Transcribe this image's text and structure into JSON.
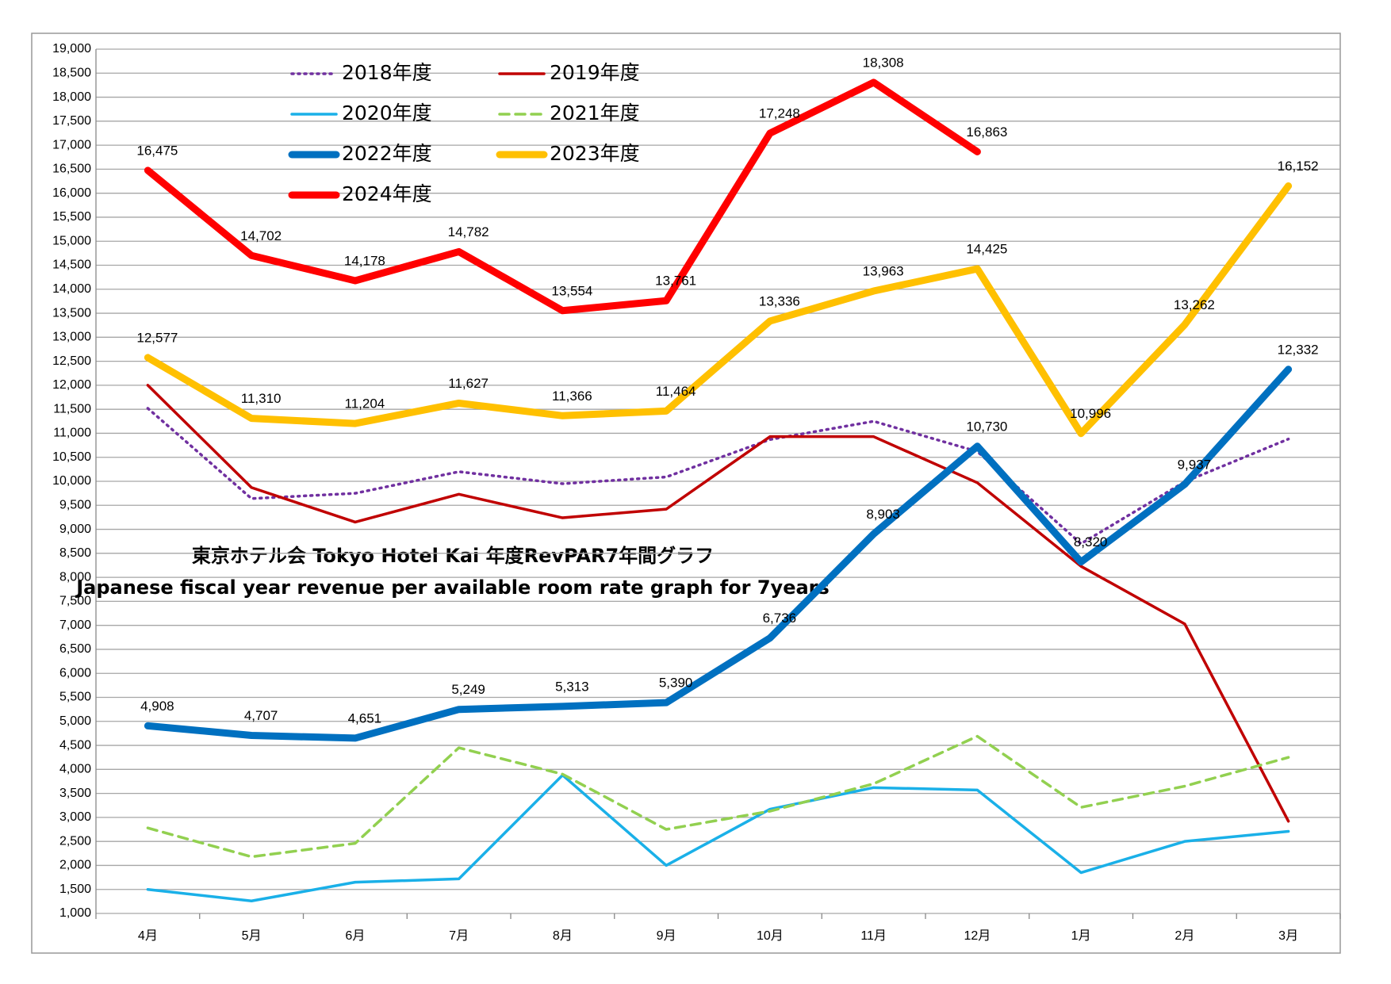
{
  "chart_data": {
    "type": "line",
    "title": "東京ホテル会 Tokyo Hotel Kai  年度RevPAR7年間グラフ",
    "subtitle": "Japanese fiscal year revenue per available room rate graph for 7years",
    "categories": [
      "4月",
      "5月",
      "6月",
      "7月",
      "8月",
      "9月",
      "10月",
      "11月",
      "12月",
      "1月",
      "2月",
      "3月"
    ],
    "ylim": [
      1000,
      19000
    ],
    "yticks": [
      {
        "value": 1000,
        "label": "1,000"
      },
      {
        "value": 1500,
        "label": "1,500"
      },
      {
        "value": 2000,
        "label": "2,000"
      },
      {
        "value": 2500,
        "label": "2,500"
      },
      {
        "value": 3000,
        "label": "3,000"
      },
      {
        "value": 3500,
        "label": "3,500"
      },
      {
        "value": 4000,
        "label": "4,000"
      },
      {
        "value": 4500,
        "label": "4,500"
      },
      {
        "value": 5000,
        "label": "5,000"
      },
      {
        "value": 5500,
        "label": "5,500"
      },
      {
        "value": 6000,
        "label": "6,000"
      },
      {
        "value": 6500,
        "label": "6,500"
      },
      {
        "value": 7000,
        "label": "7,000"
      },
      {
        "value": 7500,
        "label": "7,500"
      },
      {
        "value": 8000,
        "label": "8,000"
      },
      {
        "value": 8500,
        "label": "8,500"
      },
      {
        "value": 9000,
        "label": "9,000"
      },
      {
        "value": 9500,
        "label": "9,500"
      },
      {
        "value": 10000,
        "label": "10,000"
      },
      {
        "value": 10500,
        "label": "10,500"
      },
      {
        "value": 11000,
        "label": "11,000"
      },
      {
        "value": 11500,
        "label": "11,500"
      },
      {
        "value": 12000,
        "label": "12,000"
      },
      {
        "value": 12500,
        "label": "12,500"
      },
      {
        "value": 13000,
        "label": "13,000"
      },
      {
        "value": 13500,
        "label": "13,500"
      },
      {
        "value": 14000,
        "label": "14,000"
      },
      {
        "value": 14500,
        "label": "14,500"
      },
      {
        "value": 15000,
        "label": "15,000"
      },
      {
        "value": 15500,
        "label": "15,500"
      },
      {
        "value": 16000,
        "label": "16,000"
      },
      {
        "value": 16500,
        "label": "16,500"
      },
      {
        "value": 17000,
        "label": "17,000"
      },
      {
        "value": 17500,
        "label": "17,500"
      },
      {
        "value": 18000,
        "label": "18,000"
      },
      {
        "value": 18500,
        "label": "18,500"
      },
      {
        "value": 19000,
        "label": "19,000"
      }
    ],
    "grid": true,
    "series": [
      {
        "name": "2018年度",
        "color": "#7030a0",
        "style": "dotted",
        "values": [
          11520,
          9640,
          9750,
          10200,
          9950,
          10090,
          10870,
          11250,
          10620,
          8700,
          9990,
          10880
        ]
      },
      {
        "name": "2019年度",
        "color": "#c00000",
        "style": "solid",
        "values": [
          12000,
          9870,
          9150,
          9730,
          9240,
          9420,
          10930,
          10930,
          9970,
          8230,
          7030,
          2920
        ]
      },
      {
        "name": "2020年度",
        "color": "#1ab0e8",
        "style": "solid",
        "values": [
          1500,
          1260,
          1650,
          1720,
          3880,
          2000,
          3170,
          3620,
          3570,
          1850,
          2500,
          2710
        ]
      },
      {
        "name": "2021年度",
        "color": "#92d050",
        "style": "dashed",
        "values": [
          2780,
          2180,
          2460,
          4450,
          3900,
          2750,
          3130,
          3700,
          4690,
          3210,
          3650,
          4250
        ]
      },
      {
        "name": "2022年度",
        "color": "#0070c0",
        "style": "solid",
        "values": [
          4908,
          4707,
          4651,
          5249,
          5313,
          5390,
          6736,
          8903,
          10730,
          8320,
          9937,
          12332
        ],
        "value_labels": [
          "4,908",
          "4,707",
          "4,651",
          "5,249",
          "5,313",
          "5,390",
          "6,736",
          "8,903",
          "10,730",
          "8,320",
          "9,937",
          "12,332"
        ]
      },
      {
        "name": "2023年度",
        "color": "#ffc000",
        "style": "solid",
        "values": [
          12577,
          11310,
          11204,
          11627,
          11366,
          11464,
          13336,
          13963,
          14425,
          10996,
          13262,
          16152
        ],
        "value_labels": [
          "12,577",
          "11,310",
          "11,204",
          "11,627",
          "11,366",
          "11,464",
          "13,336",
          "13,963",
          "14,425",
          "10,996",
          "13,262",
          "16,152"
        ]
      },
      {
        "name": "2024年度",
        "color": "#ff0000",
        "style": "solid",
        "values": [
          16475,
          14702,
          14178,
          14782,
          13554,
          13761,
          17248,
          18308,
          16863,
          null,
          null,
          null
        ],
        "value_labels": [
          "16,475",
          "14,702",
          "14,178",
          "14,782",
          "13,554",
          "13,761",
          "17,248",
          "18,308",
          "16,863",
          null,
          null,
          null
        ]
      }
    ]
  }
}
